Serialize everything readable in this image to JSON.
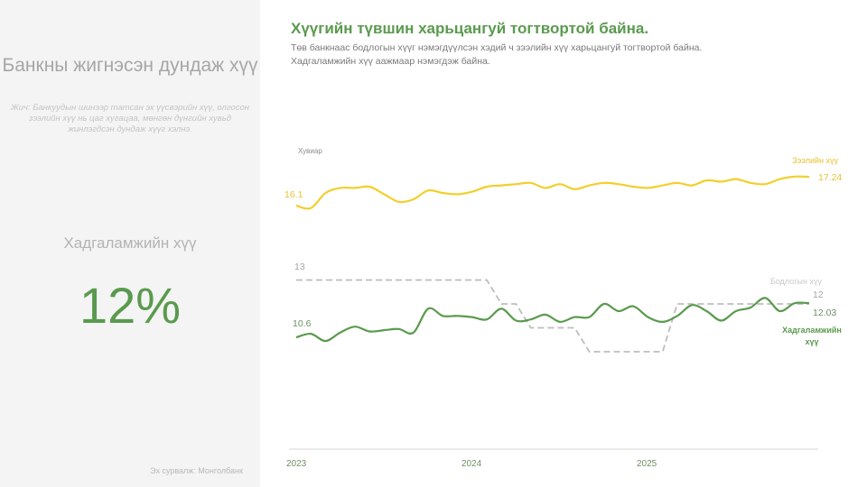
{
  "left_panel": {
    "title": "Банкны жигнэсэн дундаж хүү",
    "note": "Жич: Банкуудын шинээр татсан эх үүсвэрийн хүү, олгосон зээлийн хүү нь цаг хугацаа, мөнгөн дүнгийн хувьд жинлэгдсэн дундаж хүүг хэлнэ.",
    "kpi_label": "Хадгаламжийн хүү",
    "kpi_value": "12%",
    "source": "Эх сурвалж: Монголбанк"
  },
  "header": {
    "title": "Хүүгийн түвшин харьцангуй тогтвортой байна.",
    "subtitle_line1": "Төв банкнаас бодлогын хүүг нэмэгдүүлсэн хэдий ч зээлийн хүү харьцангуй тогтвортой байна.",
    "subtitle_line2": "Хадгаламжийн хүү аажмаар нэмэгдэж байна."
  },
  "chart_data": {
    "type": "line",
    "title": "Хүүгийн түвшин харьцангуй тогтвортой байна.",
    "ylabel": "Хувиар",
    "xlabel": "",
    "x_ticks": [
      "2023",
      "2024",
      "2025"
    ],
    "x_range_months": [
      0,
      35
    ],
    "ylim": [
      7,
      19
    ],
    "grid": false,
    "colors": {
      "loan": "#f2cf2a",
      "policy": "#bdbdbd",
      "saving": "#5a9a4e",
      "loan_label": "#e8c232",
      "saving_label": "#5a9a4e"
    },
    "series": [
      {
        "name": "Зээлийн хүү",
        "key": "loan",
        "start_label": "16.1",
        "end_label": "17.24",
        "values": [
          16.1,
          16.0,
          16.6,
          16.8,
          16.8,
          16.85,
          16.55,
          16.25,
          16.35,
          16.7,
          16.6,
          16.55,
          16.65,
          16.85,
          16.9,
          16.95,
          17.0,
          16.8,
          16.95,
          16.75,
          16.9,
          17.0,
          16.95,
          16.85,
          16.8,
          16.9,
          17.0,
          16.9,
          17.1,
          17.05,
          17.15,
          17.0,
          16.95,
          17.15,
          17.25,
          17.24
        ]
      },
      {
        "name": "Бодлогын хүү",
        "key": "policy",
        "dashed": true,
        "start_label": "13",
        "end_label": "12",
        "values": [
          13,
          13,
          13,
          13,
          13,
          13,
          13,
          13,
          13,
          13,
          13,
          13,
          13,
          13,
          12,
          12,
          11,
          11,
          11,
          11,
          10,
          10,
          10,
          10,
          10,
          10,
          12,
          12,
          12,
          12,
          12,
          12,
          12,
          12,
          12,
          12
        ]
      },
      {
        "name": "Хадгаламжийн хүү",
        "key": "saving",
        "start_label": "10.6",
        "end_label": "12.03",
        "values": [
          10.6,
          10.75,
          10.45,
          10.8,
          11.05,
          10.85,
          10.9,
          10.95,
          10.8,
          11.8,
          11.5,
          11.5,
          11.45,
          11.35,
          11.8,
          11.3,
          11.35,
          11.55,
          11.25,
          11.45,
          11.45,
          12.0,
          11.7,
          11.9,
          11.45,
          11.25,
          11.5,
          11.95,
          11.7,
          11.3,
          11.7,
          11.85,
          12.25,
          11.7,
          12.03,
          12.03
        ]
      }
    ],
    "legend_labels": {
      "loan": "Зээлийн хүү",
      "policy": "Бодлогын хүү",
      "saving_line1": "Хадгаламжийн",
      "saving_line2": "хүү"
    }
  }
}
